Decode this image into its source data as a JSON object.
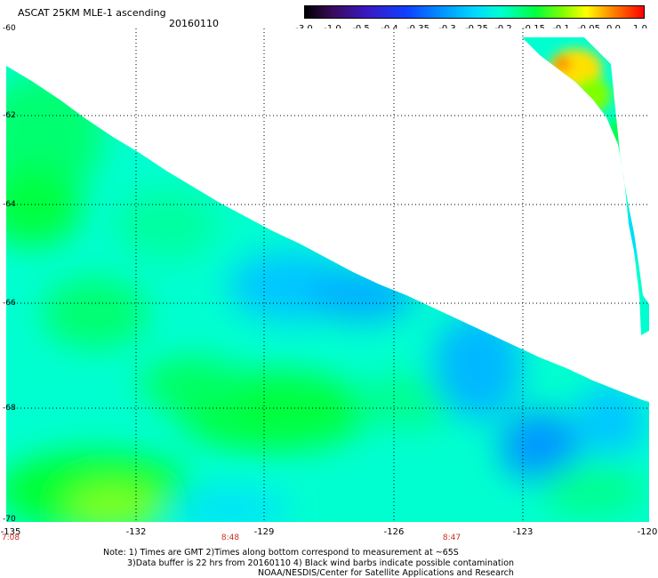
{
  "header": {
    "title": "ASCAT 25KM MLE-1 ascending",
    "date": "20160110"
  },
  "colorbar": {
    "ticks": [
      "-3.0",
      "-1.0",
      "-0.5",
      "-0.4",
      "-0.35",
      "-0.3",
      "-0.25",
      "-0.2",
      "-0.15",
      "-0.1",
      "-0.05",
      "0.0",
      "1.0"
    ],
    "colors": [
      "#000000",
      "#3a18c0",
      "#1040ff",
      "#0090ff",
      "#00d8ff",
      "#00ffd0",
      "#00ff40",
      "#80ff00",
      "#ffff00",
      "#ff8000",
      "#ff0000"
    ]
  },
  "map": {
    "lat_labels": [
      "-60",
      "-62",
      "-64",
      "-66",
      "-68",
      "-70"
    ],
    "lon_labels": [
      "-135",
      "-132",
      "-129",
      "-126",
      "-123",
      "-120"
    ],
    "time_labels": [
      "7:08",
      "8:48",
      "8:47"
    ]
  },
  "notes": {
    "line1": "Note: 1) Times are GMT 2)Times along bottom correspond to measurement at ~65S",
    "line2": "3)Data buffer is 22 hrs from 20160110 4) Black wind barbs indicate possible contamination",
    "line3": "NOAA/NESDIS/Center for Satellite Applications and Research"
  }
}
